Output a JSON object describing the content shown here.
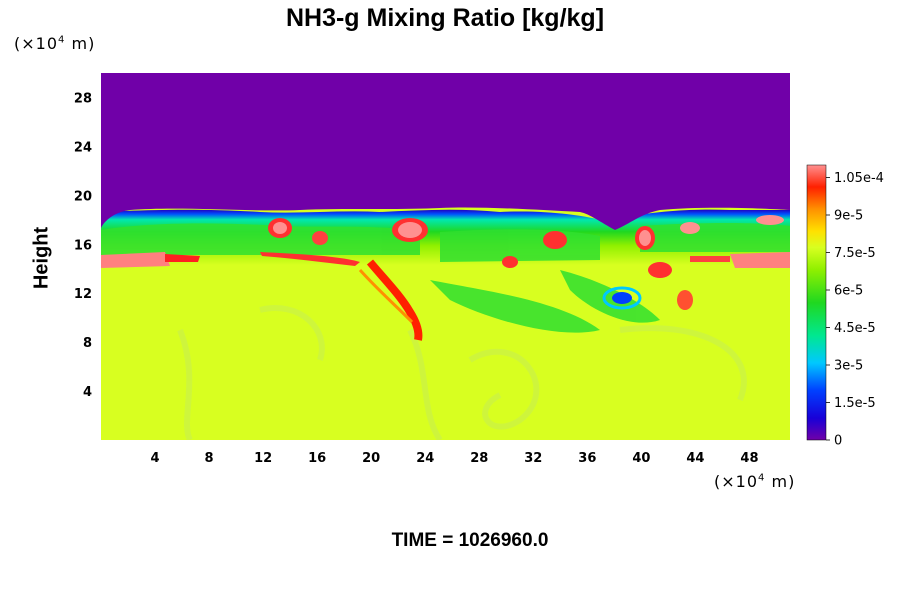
{
  "chart_data": {
    "type": "heatmap",
    "title": "NH3-g Mixing Ratio [kg/kg]",
    "ylabel": "Height",
    "y_unit": "(×10⁴ m)",
    "x_unit": "(×10⁴ m)",
    "x_ticks": [
      4,
      8,
      12,
      16,
      20,
      24,
      28,
      32,
      36,
      40,
      44,
      48
    ],
    "y_ticks": [
      4,
      8,
      12,
      16,
      20,
      24,
      28
    ],
    "xlim": [
      0,
      51
    ],
    "ylim": [
      0,
      30
    ],
    "colorbar": {
      "min": 0,
      "max": 0.00011,
      "tick_labels": [
        "0",
        "1.5e-5",
        "3e-5",
        "4.5e-5",
        "6e-5",
        "7.5e-5",
        "9e-5",
        "1.05e-4"
      ],
      "tick_values": [
        0,
        1.5e-05,
        3e-05,
        4.5e-05,
        6e-05,
        7.5e-05,
        9e-05,
        0.000105
      ]
    },
    "fields": {
      "upper_layer_value": 0,
      "lower_layer_value": 7.8e-05,
      "layer_top_height": 18.5,
      "enriched_band_height": 15,
      "enriched_band_value": 0.00011
    },
    "time_label": "TIME = 1026960.0"
  },
  "colors": {
    "upper": "#7000a8",
    "lower": "#d8ff20",
    "band_green": "#30e030",
    "band_high": "#ff8080"
  }
}
